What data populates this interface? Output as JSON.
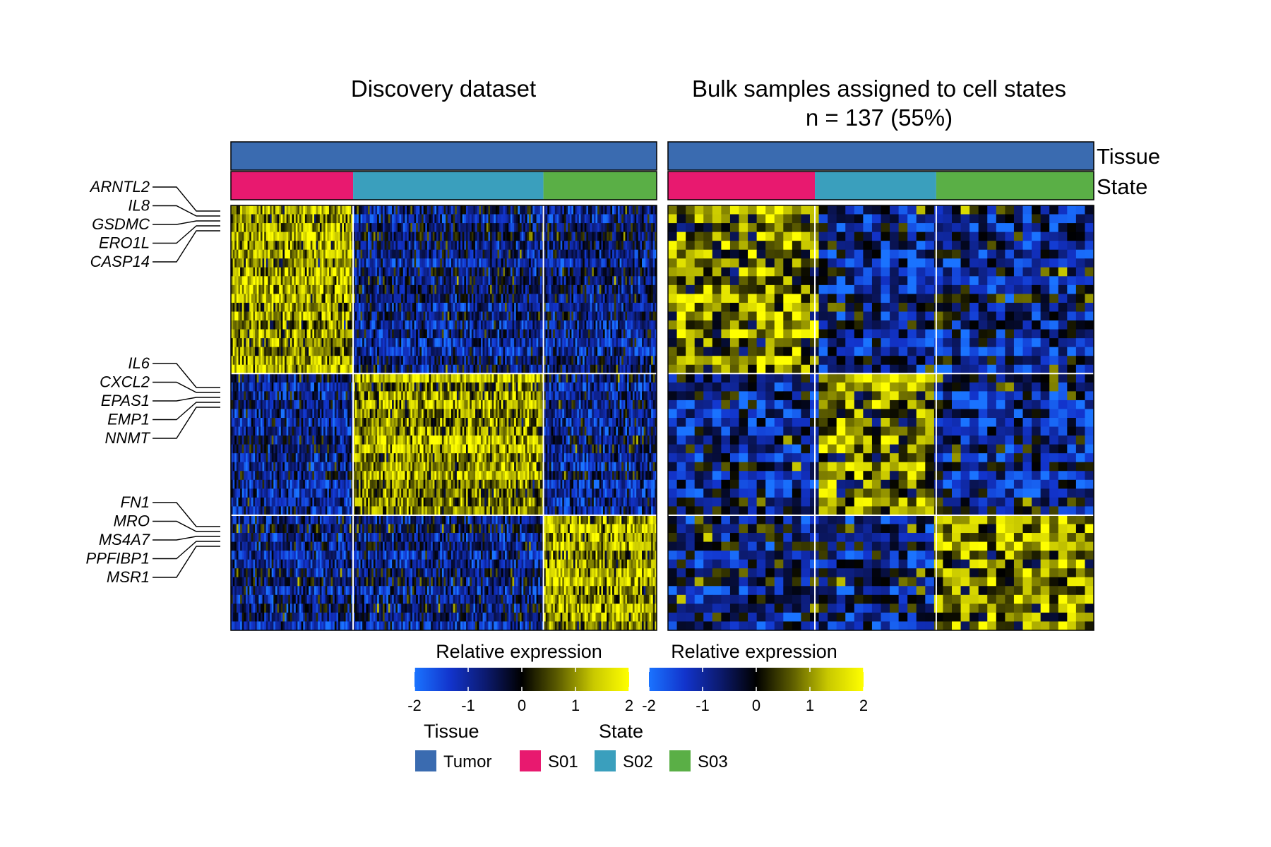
{
  "chart_data": {
    "type": "heatmap",
    "panels": [
      {
        "id": "discovery",
        "title": "Discovery dataset",
        "subtitle": "",
        "state_fractions": [
          0.287,
          0.447,
          0.266
        ]
      },
      {
        "id": "bulk",
        "title": "Bulk samples assigned to cell states",
        "subtitle": "n = 137 (55%)",
        "state_fractions": [
          0.345,
          0.285,
          0.37
        ]
      }
    ],
    "row_blocks": [
      {
        "state": "S01",
        "fraction": 0.4
      },
      {
        "state": "S02",
        "fraction": 0.33
      },
      {
        "state": "S03",
        "fraction": 0.27
      }
    ],
    "annotation_rows": [
      "Tissue",
      "State"
    ],
    "gene_labels": [
      {
        "block": "S01",
        "genes": [
          "ARNTL2",
          "IL8",
          "GSDMC",
          "ERO1L",
          "CASP14"
        ]
      },
      {
        "block": "S02",
        "genes": [
          "IL6",
          "CXCL2",
          "EPAS1",
          "EMP1",
          "NNMT"
        ]
      },
      {
        "block": "S03",
        "genes": [
          "FN1",
          "MRO",
          "MS4A7",
          "PPFIBP1",
          "MSR1"
        ]
      }
    ],
    "colorbar": {
      "title": "Relative expression",
      "range": [
        -2,
        2
      ],
      "ticks": [
        "-2",
        "-1",
        "0",
        "1",
        "2"
      ],
      "colors": [
        "#1a73ff",
        "#1234cc",
        "#0c1a6e",
        "#000000",
        "#5c5c00",
        "#c8c800",
        "#ffff00"
      ]
    },
    "legend": {
      "tissue_title": "Tissue",
      "state_title": "State",
      "items": [
        {
          "group": "Tissue",
          "label": "Tumor",
          "color": "#3a6bb0"
        },
        {
          "group": "State",
          "label": "S01",
          "color": "#e8196f"
        },
        {
          "group": "State",
          "label": "S02",
          "color": "#3a9fbd"
        },
        {
          "group": "State",
          "label": "S03",
          "color": "#5aaf46"
        }
      ]
    },
    "colors": {
      "tumor": "#3a6bb0",
      "S01": "#e8196f",
      "S02": "#3a9fbd",
      "S03": "#5aaf46"
    }
  }
}
